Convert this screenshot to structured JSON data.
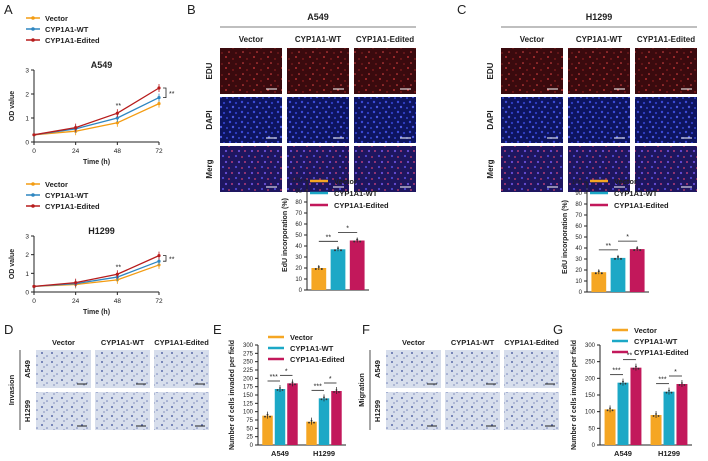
{
  "colors": {
    "vector": "#f5a623",
    "wt": "#1ca8c6",
    "edited": "#c2185b",
    "line_vector": "#f39c12",
    "line_wt": "#2e86c1",
    "line_edited": "#b71c1c",
    "micro_red": "#8c1a28",
    "micro_blue": "#1a2690",
    "transwell": "#c8d3e6"
  },
  "panels": {
    "A": "A",
    "B": "B",
    "C": "C",
    "D": "D",
    "E": "E",
    "F": "F",
    "G": "G"
  },
  "legend": {
    "vector": "Vector",
    "wt": "CYP1A1-WT",
    "edited": "CYP1A1-Edited"
  },
  "panelA": {
    "ylabel": "OD value",
    "xlabel": "Time (h)",
    "charts": [
      {
        "title": "A549",
        "x": [
          0,
          24,
          48,
          72
        ],
        "yticks": [
          "0",
          "1",
          "2",
          "3"
        ],
        "xticks": [
          "0",
          "24",
          "48",
          "72"
        ],
        "ylim": [
          0,
          3
        ],
        "series": [
          {
            "name": "Vector",
            "values": [
              0.3,
              0.45,
              0.8,
              1.6
            ]
          },
          {
            "name": "CYP1A1-WT",
            "values": [
              0.3,
              0.55,
              1.0,
              1.85
            ]
          },
          {
            "name": "CYP1A1-Edited",
            "values": [
              0.3,
              0.6,
              1.2,
              2.25
            ]
          }
        ],
        "annot48": "**",
        "annot72": "**"
      },
      {
        "title": "H1299",
        "x": [
          0,
          24,
          48,
          72
        ],
        "yticks": [
          "0",
          "1",
          "2",
          "3"
        ],
        "xticks": [
          "0",
          "24",
          "48",
          "72"
        ],
        "ylim": [
          0,
          3
        ],
        "series": [
          {
            "name": "Vector",
            "values": [
              0.3,
              0.4,
              0.65,
              1.45
            ]
          },
          {
            "name": "CYP1A1-WT",
            "values": [
              0.3,
              0.45,
              0.8,
              1.65
            ]
          },
          {
            "name": "CYP1A1-Edited",
            "values": [
              0.3,
              0.5,
              0.95,
              1.95
            ]
          }
        ],
        "annot48": "**",
        "annot72": "**"
      }
    ]
  },
  "panelB": {
    "title": "A549",
    "cols": [
      "Vector",
      "CYP1A1-WT",
      "CYP1A1-Edited"
    ],
    "rows": [
      "EDU",
      "DAPI",
      "Merg"
    ]
  },
  "panelC": {
    "title": "H1299",
    "cols": [
      "Vector",
      "CYP1A1-WT",
      "CYP1A1-Edited"
    ],
    "rows": [
      "EDU",
      "DAPI",
      "Merg"
    ]
  },
  "chart_data": [
    {
      "type": "bar",
      "title": "A549 EdU",
      "ylabel": "EdU incorporation (%)",
      "categories": [
        "Vector",
        "CYP1A1-WT",
        "CYP1A1-Edited"
      ],
      "values": [
        20,
        37,
        45
      ],
      "ylim": [
        0,
        100
      ],
      "yticks": [
        "0",
        "10",
        "20",
        "30",
        "40",
        "50",
        "60",
        "70",
        "80",
        "90",
        "100"
      ],
      "sig": [
        "**",
        "*"
      ]
    },
    {
      "type": "bar",
      "title": "H1299 EdU",
      "ylabel": "EdU incorporation (%)",
      "categories": [
        "Vector",
        "CYP1A1-WT",
        "CYP1A1-Edited"
      ],
      "values": [
        18,
        31,
        39
      ],
      "ylim": [
        0,
        100
      ],
      "yticks": [
        "0",
        "10",
        "20",
        "30",
        "40",
        "50",
        "60",
        "70",
        "80",
        "90",
        "100"
      ],
      "sig": [
        "**",
        "*"
      ]
    },
    {
      "type": "bar",
      "title": "Invasion",
      "ylabel": "Number of cells invaded per field",
      "categories": [
        "A549",
        "H1299"
      ],
      "series": [
        {
          "name": "Vector",
          "values": [
            88,
            70
          ]
        },
        {
          "name": "CYP1A1-WT",
          "values": [
            168,
            140
          ]
        },
        {
          "name": "CYP1A1-Edited",
          "values": [
            185,
            162
          ]
        }
      ],
      "ylim": [
        0,
        300
      ],
      "yticks": [
        "0",
        "25",
        "50",
        "75",
        "100",
        "125",
        "150",
        "175",
        "200",
        "225",
        "250",
        "275",
        "300"
      ],
      "sig_A549": [
        "***",
        "*"
      ],
      "sig_H1299": [
        "***",
        "*"
      ]
    },
    {
      "type": "bar",
      "title": "Migration",
      "ylabel": "Number of cells invaded per field",
      "categories": [
        "A549",
        "H1299"
      ],
      "series": [
        {
          "name": "Vector",
          "values": [
            107,
            90
          ]
        },
        {
          "name": "CYP1A1-WT",
          "values": [
            187,
            160
          ]
        },
        {
          "name": "CYP1A1-Edited",
          "values": [
            232,
            183
          ]
        }
      ],
      "ylim": [
        0,
        300
      ],
      "yticks": [
        "0",
        "50",
        "100",
        "150",
        "200",
        "250",
        "300"
      ],
      "sig_A549": [
        "***",
        "**"
      ],
      "sig_H1299": [
        "***",
        "*"
      ]
    }
  ],
  "panelD": {
    "cols": [
      "Vector",
      "CYP1A1-WT",
      "CYP1A1-Edited"
    ],
    "rows": [
      "A549",
      "H1299"
    ],
    "side": "Invasion"
  },
  "panelF": {
    "cols": [
      "Vector",
      "CYP1A1-WT",
      "CYP1A1-Edited"
    ],
    "rows": [
      "A549",
      "H1299"
    ],
    "side": "Migration"
  }
}
